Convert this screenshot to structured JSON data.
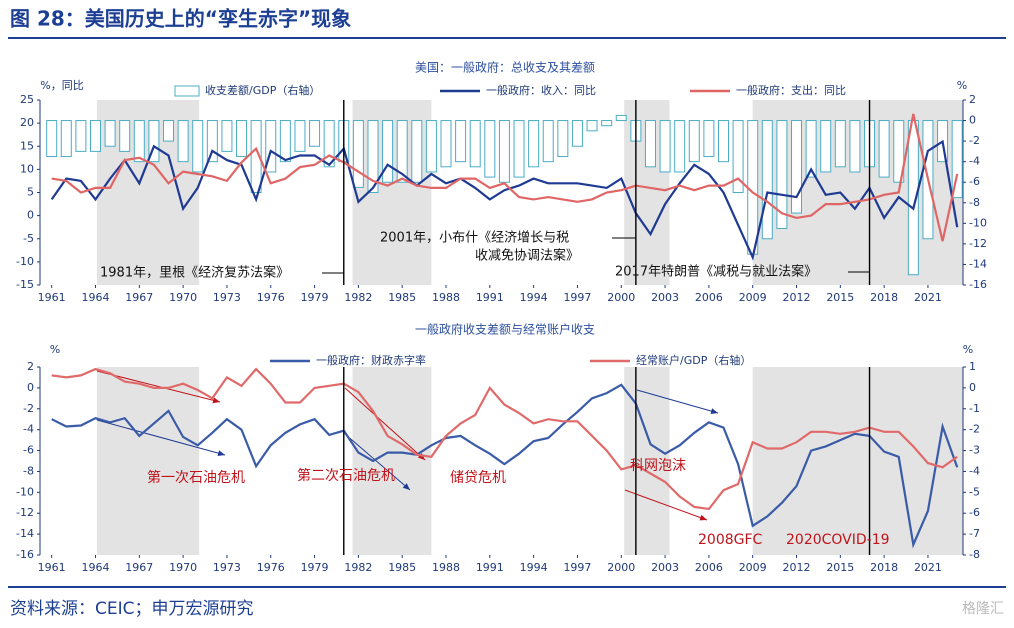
{
  "header": {
    "title": "图 28：美国历史上的“孪生赤字”现象"
  },
  "source": "资料来源：CEIC；申万宏源研究",
  "watermark": "格隆汇",
  "chart_data": [
    {
      "type": "combo",
      "title": "美国：一般政府：总收支及其差额",
      "ylabel": "%，同比",
      "y2label": "%",
      "x": [
        1961,
        1962,
        1963,
        1964,
        1965,
        1966,
        1967,
        1968,
        1969,
        1970,
        1971,
        1972,
        1973,
        1974,
        1975,
        1976,
        1977,
        1978,
        1979,
        1980,
        1981,
        1982,
        1983,
        1984,
        1985,
        1986,
        1987,
        1988,
        1989,
        1990,
        1991,
        1992,
        1993,
        1994,
        1995,
        1996,
        1997,
        1998,
        1999,
        2000,
        2001,
        2002,
        2003,
        2004,
        2005,
        2006,
        2007,
        2008,
        2009,
        2010,
        2011,
        2012,
        2013,
        2014,
        2015,
        2016,
        2017,
        2018,
        2019,
        2020,
        2021,
        2022,
        2023
      ],
      "xlim": [
        1960.2,
        2023.4
      ],
      "xticks": [
        1961,
        1964,
        1967,
        1970,
        1973,
        1976,
        1979,
        1982,
        1985,
        1988,
        1991,
        1994,
        1997,
        2000,
        2003,
        2006,
        2009,
        2012,
        2015,
        2018,
        2021
      ],
      "ylim": [
        -15,
        25
      ],
      "yticks": [
        -15,
        -10,
        -5,
        0,
        5,
        10,
        15,
        20,
        25
      ],
      "y2lim": [
        -16,
        2
      ],
      "y2ticks": [
        -16,
        -14,
        -12,
        -10,
        -8,
        -6,
        -4,
        -2,
        0,
        2
      ],
      "shaded_spans": [
        [
          1964.1,
          1971.1
        ],
        [
          1981.6,
          1987
        ],
        [
          2000.2,
          2003.3
        ],
        [
          2009,
          2023.4
        ]
      ],
      "vlines": [
        1981,
        2001,
        2017
      ],
      "series": [
        {
          "name": "收支差额/GDP（右轴）",
          "type": "bar",
          "axis": "y2",
          "color": "#4bacc6",
          "values": [
            -3.5,
            -3.5,
            -3.0,
            -3.0,
            -2.5,
            -3.0,
            -4.0,
            -4.0,
            -2.0,
            -4.0,
            -5.0,
            -4.0,
            -3.0,
            -3.5,
            -7.0,
            -5.0,
            -4.0,
            -3.0,
            -2.5,
            -4.5,
            -4.0,
            -6.5,
            -7.0,
            -6.0,
            -6.0,
            -6.0,
            -5.0,
            -4.5,
            -4.0,
            -4.5,
            -5.5,
            -6.0,
            -5.5,
            -4.5,
            -4.0,
            -3.5,
            -2.5,
            -1.0,
            -0.5,
            0.5,
            -2.0,
            -4.5,
            -5.0,
            -5.0,
            -4.0,
            -3.5,
            -4.0,
            -7.0,
            -13.0,
            -11.5,
            -10.5,
            -9.0,
            -5.5,
            -5.0,
            -4.5,
            -5.0,
            -4.5,
            -5.5,
            -6.0,
            -15.0,
            -11.5,
            -4.0,
            -7.5
          ]
        },
        {
          "name": "一般政府：收入：同比",
          "type": "line",
          "color": "#1f3a93",
          "values": [
            3.5,
            8,
            7.5,
            3.5,
            8,
            12,
            7,
            15,
            13,
            1.5,
            6,
            14,
            12,
            11,
            3.5,
            14,
            12,
            13,
            13,
            11,
            14.5,
            3,
            6,
            11,
            9,
            6.5,
            9,
            7,
            8,
            6,
            3.5,
            5.5,
            6.5,
            8,
            7,
            7,
            7,
            6.5,
            6,
            8,
            0.5,
            -4,
            2.5,
            7,
            11,
            9,
            5,
            -2,
            -9,
            5,
            4.5,
            4,
            10,
            4.5,
            5,
            1.5,
            6,
            -0.5,
            4,
            1.5,
            14,
            16,
            -2.5
          ]
        },
        {
          "name": "一般政府：支出：同比",
          "type": "line",
          "color": "#e06666",
          "values": [
            8,
            7.5,
            5,
            6,
            6,
            12,
            12.5,
            11,
            7,
            9.5,
            9,
            8.5,
            7.5,
            11.5,
            14.5,
            7,
            8,
            10.5,
            11,
            13,
            11.5,
            9.5,
            7.5,
            6.5,
            8,
            6.5,
            6,
            6,
            8,
            8,
            6,
            7,
            4,
            3.5,
            4,
            3.5,
            3,
            3.5,
            5,
            5.5,
            6.5,
            6,
            5.5,
            6.5,
            5.5,
            6.5,
            6.5,
            8,
            5,
            3,
            0.5,
            -0.5,
            0,
            2.5,
            2.5,
            3,
            3.5,
            4.5,
            5,
            22,
            8,
            -5.5,
            9
          ]
        }
      ],
      "annotations": [
        {
          "lines": [
            "1981年，里根《经济复苏法案》"
          ]
        },
        {
          "lines": [
            "2001年，小布什《经济增长与税",
            "收减免协调法案》"
          ]
        },
        {
          "lines": [
            "2017年特朗普《减税与就业法案》"
          ]
        }
      ]
    },
    {
      "type": "combo",
      "title": "一般政府收支差额与经常账户收支",
      "ylabel": "%",
      "y2label": "%",
      "x": [
        1961,
        1962,
        1963,
        1964,
        1965,
        1966,
        1967,
        1968,
        1969,
        1970,
        1971,
        1972,
        1973,
        1974,
        1975,
        1976,
        1977,
        1978,
        1979,
        1980,
        1981,
        1982,
        1983,
        1984,
        1985,
        1986,
        1987,
        1988,
        1989,
        1990,
        1991,
        1992,
        1993,
        1994,
        1995,
        1996,
        1997,
        1998,
        1999,
        2000,
        2001,
        2002,
        2003,
        2004,
        2005,
        2006,
        2007,
        2008,
        2009,
        2010,
        2011,
        2012,
        2013,
        2014,
        2015,
        2016,
        2017,
        2018,
        2019,
        2020,
        2021,
        2022,
        2023
      ],
      "xlim": [
        1960.2,
        2023.4
      ],
      "xticks": [
        1961,
        1964,
        1967,
        1970,
        1973,
        1976,
        1979,
        1982,
        1985,
        1988,
        1991,
        1994,
        1997,
        2000,
        2003,
        2006,
        2009,
        2012,
        2015,
        2018,
        2021
      ],
      "ylim": [
        -16,
        2
      ],
      "yticks": [
        -16,
        -14,
        -12,
        -10,
        -8,
        -6,
        -4,
        -2,
        0,
        2
      ],
      "y2lim": [
        -8,
        1
      ],
      "y2ticks": [
        -8,
        -7,
        -6,
        -5,
        -4,
        -3,
        -2,
        -1,
        0,
        1
      ],
      "shaded_spans": [
        [
          1964.1,
          1971.1
        ],
        [
          1981.6,
          1987
        ],
        [
          2000.2,
          2003.3
        ],
        [
          2009,
          2023.4
        ]
      ],
      "vlines": [
        1981,
        2001,
        2017
      ],
      "series": [
        {
          "name": "一般政府：财政赤字率",
          "type": "line",
          "color": "#3a5ba8",
          "values": [
            -3,
            -3.7,
            -3.6,
            -2.9,
            -3.3,
            -2.9,
            -4.6,
            -3.4,
            -2.2,
            -4.7,
            -5.5,
            -4.3,
            -3,
            -4,
            -7.5,
            -5.5,
            -4.3,
            -3.5,
            -3.0,
            -4.5,
            -4.1,
            -6.2,
            -7,
            -6.2,
            -6.2,
            -6.4,
            -5.5,
            -4.8,
            -4.6,
            -5.5,
            -6.3,
            -7.3,
            -6.3,
            -5.1,
            -4.8,
            -3.5,
            -2.3,
            -1,
            -0.5,
            0.3,
            -1.5,
            -5.4,
            -6.3,
            -5.5,
            -4.3,
            -3.3,
            -3.8,
            -7.3,
            -13.2,
            -12.3,
            -11,
            -9.4,
            -6,
            -5.6,
            -5,
            -4.4,
            -4.6,
            -6.1,
            -6.6,
            -15,
            -11.8,
            -3.7,
            -7.6
          ]
        },
        {
          "name": "经常账户/GDP（右轴）",
          "type": "line",
          "axis": "y2",
          "color": "#e06a6a",
          "values": [
            0.6,
            0.5,
            0.6,
            0.9,
            0.7,
            0.3,
            0.2,
            0,
            0,
            0.2,
            -0.1,
            -0.5,
            0.5,
            0.1,
            0.9,
            0.2,
            -0.7,
            -0.7,
            0,
            0.1,
            0.2,
            -0.2,
            -1.1,
            -2.3,
            -2.7,
            -3.2,
            -3.3,
            -2.3,
            -1.7,
            -1.3,
            0,
            -0.8,
            -1.2,
            -1.7,
            -1.5,
            -1.6,
            -1.6,
            -2.3,
            -3,
            -3.9,
            -3.7,
            -4.1,
            -4.5,
            -5.2,
            -5.7,
            -5.8,
            -4.9,
            -4.6,
            -2.6,
            -2.9,
            -2.9,
            -2.6,
            -2.1,
            -2.1,
            -2.2,
            -2.1,
            -1.9,
            -2.1,
            -2.1,
            -2.8,
            -3.6,
            -3.8,
            -3.3
          ]
        }
      ],
      "annotations": [
        {
          "lines": [
            "第一次石油危机"
          ]
        },
        {
          "lines": [
            "第二次石油危机"
          ]
        },
        {
          "lines": [
            "储贷危机"
          ]
        },
        {
          "lines": [
            "科网泡沫"
          ]
        },
        {
          "lines": [
            "2008GFC"
          ]
        },
        {
          "lines": [
            "2020COVID-19"
          ]
        }
      ]
    }
  ]
}
